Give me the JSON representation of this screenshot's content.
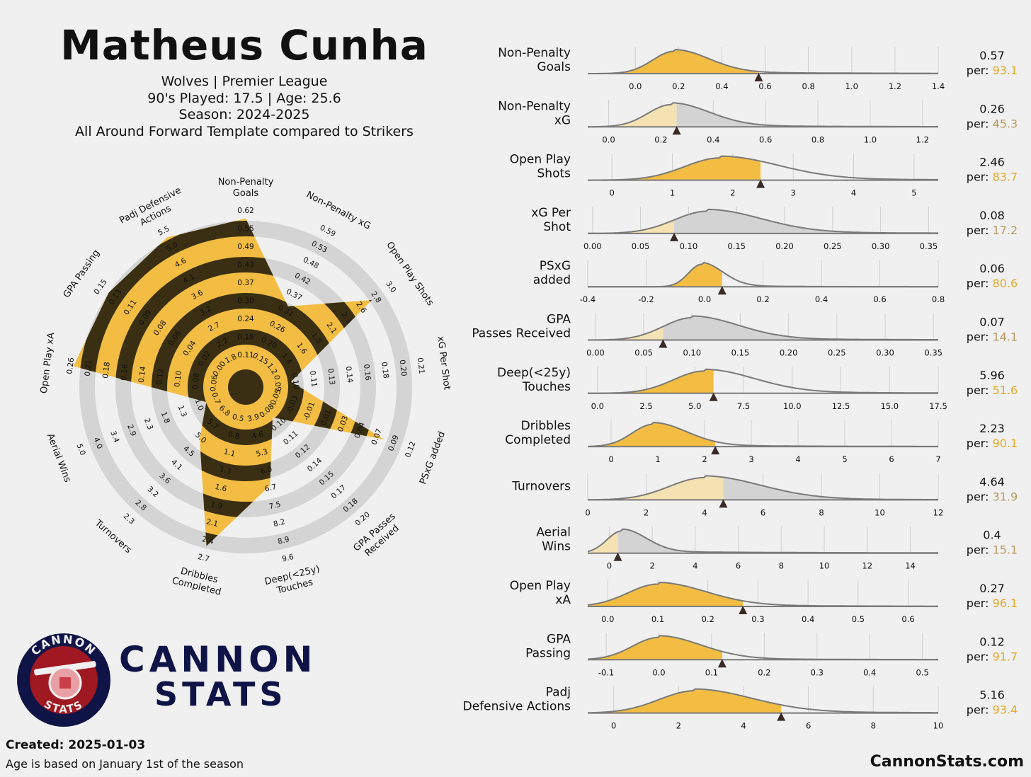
{
  "header": {
    "title": "Matheus Cunha",
    "team_league": "Wolves | Premier League",
    "played_age": "90's Played: 17.5 | Age: 25.6",
    "season": "Season: 2024-2025",
    "template": "All Around Forward Template compared to Strikers"
  },
  "logo": {
    "circle_top": "CANNON",
    "circle_bottom": "STATS",
    "brand_line1": "CANNON",
    "brand_line2": "STATS"
  },
  "footer": {
    "created": "Created: 2025-01-03",
    "note": "Age is based on January 1st of the season",
    "site": "CannonStats.com"
  },
  "colors": {
    "background": "#f0f0f0",
    "accent": "#f2bd42",
    "accent_light": "#f4e2b3",
    "dark_band": "#3a2f12",
    "ring": "#d4d4d4",
    "density_gray": "#d3d3d3",
    "density_line": "#7a7a7a",
    "logo_navy": "#0f1447",
    "logo_red": "#a01822"
  },
  "chart_data": [
    {
      "type": "radar",
      "title": "",
      "variables": [
        {
          "label": [
            "Non-Penalty",
            "Goals"
          ],
          "value": 0.57,
          "percentile": 93.1,
          "ticks": [
            "0.11",
            "0.18",
            "0.24",
            "0.30",
            "0.37",
            "0.43",
            "0.49",
            "0.55",
            "0.62"
          ]
        },
        {
          "label": [
            "Non-Penalty xG"
          ],
          "value": 0.26,
          "percentile": 45.3,
          "ticks": [
            "0.15",
            "0.20",
            "0.26",
            "0.31",
            "0.37",
            "0.42",
            "0.48",
            "0.53",
            "0.59"
          ]
        },
        {
          "label": [
            "Open Play Shots"
          ],
          "value": 2.46,
          "percentile": 83.7,
          "ticks": [
            "1.2",
            "1.4",
            "1.6",
            "1.8",
            "2.1",
            "2.3",
            "2.6",
            "2.8",
            "3.0"
          ]
        },
        {
          "label": [
            "xG Per Shot"
          ],
          "value": 0.08,
          "percentile": 17.2,
          "ticks": [
            "0.09",
            "0.10",
            "0.11",
            "0.13",
            "0.14",
            "0.16",
            "0.18",
            "0.20",
            "0.21"
          ]
        },
        {
          "label": [
            "PSxG added"
          ],
          "value": 0.06,
          "percentile": 80.6,
          "ticks": [
            "-0.05",
            "-0.03",
            "-0.01",
            "0.01",
            "0.03",
            "0.04",
            "0.07",
            "0.09",
            "0.12"
          ]
        },
        {
          "label": [
            "GPA Passes",
            "Received"
          ],
          "value": 0.07,
          "percentile": 14.1,
          "ticks": [
            "0.08",
            "0.10",
            "0.11",
            "0.12",
            "0.14",
            "0.15",
            "0.17",
            "0.18",
            "0.20"
          ]
        },
        {
          "label": [
            "Deep(<25y)",
            "Touches"
          ],
          "value": 5.96,
          "percentile": 51.6,
          "ticks": [
            "3.9",
            "4.6",
            "5.3",
            "6.0",
            "6.7",
            "7.5",
            "8.2",
            "8.9",
            "9.6"
          ]
        },
        {
          "label": [
            "Dribbles",
            "Completed"
          ],
          "value": 2.23,
          "percentile": 90.1,
          "ticks": [
            "0.5",
            "0.8",
            "1.1",
            "1.3",
            "1.6",
            "1.9",
            "2.1",
            "2.4",
            "2.7"
          ]
        },
        {
          "label": [
            "Turnovers"
          ],
          "value": 4.64,
          "percentile": 31.9,
          "ticks": [
            "6.8",
            "5.7",
            "5.0",
            "4.5",
            "4.1",
            "3.6",
            "3.2",
            "2.8",
            "2.3"
          ]
        },
        {
          "label": [
            "Aerial Wins"
          ],
          "value": 0.4,
          "percentile": 15.1,
          "ticks": [
            "0.7",
            "1.0",
            "1.3",
            "1.8",
            "2.3",
            "2.9",
            "3.4",
            "4.0",
            "5.0"
          ]
        },
        {
          "label": [
            "Open Play xA"
          ],
          "value": 0.27,
          "percentile": 96.1,
          "ticks": [
            "0.06",
            "0.08",
            "0.10",
            "0.12",
            "0.14",
            "0.16",
            "0.18",
            "0.21",
            "0.26"
          ]
        },
        {
          "label": [
            "GPA Passing"
          ],
          "value": 0.12,
          "percentile": 91.7,
          "ticks": [
            "0.00",
            "0.02",
            "0.04",
            "0.06",
            "0.08",
            "0.09",
            "0.11",
            "0.13",
            "0.15"
          ]
        },
        {
          "label": [
            "Padj Defensive",
            "Actions"
          ],
          "value": 5.16,
          "percentile": 93.4,
          "ticks": [
            "1.8",
            "2.2",
            "2.7",
            "3.2",
            "3.6",
            "4.1",
            "4.6",
            "5.0",
            "5.5"
          ]
        }
      ]
    },
    {
      "type": "density",
      "percentile_prefix": "per:",
      "metrics": [
        {
          "label": [
            "Non-Penalty",
            "Goals"
          ],
          "value": "0.57",
          "percentile": "93.1",
          "x_ticks": [
            "0.0",
            "0.2",
            "0.4",
            "0.6",
            "0.8",
            "1.0",
            "1.2",
            "1.4"
          ],
          "x_range": [
            -0.22,
            1.4
          ],
          "value_num": 0.57,
          "peak": 0.18,
          "spread": 0.1,
          "tail": 0.2
        },
        {
          "label": [
            "Non-Penalty",
            "xG"
          ],
          "value": "0.26",
          "percentile": "45.3",
          "x_ticks": [
            "0.0",
            "0.2",
            "0.4",
            "0.6",
            "0.8",
            "1.0",
            "1.2"
          ],
          "x_range": [
            -0.08,
            1.26
          ],
          "value_num": 0.26,
          "peak": 0.24,
          "spread": 0.09,
          "tail": 0.16
        },
        {
          "label": [
            "Open Play",
            "Shots"
          ],
          "value": "2.46",
          "percentile": "83.7",
          "x_ticks": [
            "0",
            "1",
            "2",
            "3",
            "4",
            "5"
          ],
          "x_range": [
            -0.4,
            5.4
          ],
          "value_num": 2.46,
          "peak": 1.8,
          "spread": 0.6,
          "tail": 0.9
        },
        {
          "label": [
            "xG Per",
            "Shot"
          ],
          "value": "0.08",
          "percentile": "17.2",
          "x_ticks": [
            "0.00",
            "0.05",
            "0.10",
            "0.15",
            "0.20",
            "0.25",
            "0.30",
            "0.35"
          ],
          "x_range": [
            -0.005,
            0.36
          ],
          "value_num": 0.085,
          "peak": 0.12,
          "spread": 0.035,
          "tail": 0.05
        },
        {
          "label": [
            "PSxG",
            "added"
          ],
          "value": "0.06",
          "percentile": "80.6",
          "x_ticks": [
            "-0.4",
            "-0.2",
            "0.0",
            "0.2",
            "0.4",
            "0.6",
            "0.8"
          ],
          "x_range": [
            -0.4,
            0.8
          ],
          "value_num": 0.06,
          "peak": -0.01,
          "spread": 0.045,
          "tail": 0.06
        },
        {
          "label": [
            "GPA",
            "Passes Received"
          ],
          "value": "0.07",
          "percentile": "14.1",
          "x_ticks": [
            "0.00",
            "0.05",
            "0.10",
            "0.15",
            "0.20",
            "0.25",
            "0.30",
            "0.35"
          ],
          "x_range": [
            -0.008,
            0.355
          ],
          "value_num": 0.07,
          "peak": 0.1,
          "spread": 0.03,
          "tail": 0.05
        },
        {
          "label": [
            "Deep(<25y)",
            "Touches"
          ],
          "value": "5.96",
          "percentile": "51.6",
          "x_ticks": [
            "0.0",
            "2.5",
            "5.0",
            "7.5",
            "10.0",
            "12.5",
            "15.0",
            "17.5"
          ],
          "x_range": [
            -0.5,
            17.5
          ],
          "value_num": 5.96,
          "peak": 5.5,
          "spread": 1.6,
          "tail": 2.5
        },
        {
          "label": [
            "Dribbles",
            "Completed"
          ],
          "value": "2.23",
          "percentile": "90.1",
          "x_ticks": [
            "0",
            "1",
            "2",
            "3",
            "4",
            "5",
            "6",
            "7"
          ],
          "x_range": [
            -0.5,
            7
          ],
          "value_num": 2.23,
          "peak": 0.9,
          "spread": 0.45,
          "tail": 0.8
        },
        {
          "label": [
            "Turnovers"
          ],
          "value": "4.64",
          "percentile": "31.9",
          "x_ticks": [
            "0",
            "2",
            "4",
            "6",
            "8",
            "10",
            "12"
          ],
          "x_range": [
            0,
            12
          ],
          "value_num": 4.64,
          "peak": 4.0,
          "spread": 1.2,
          "tail": 1.4
        },
        {
          "label": [
            "Aerial",
            "Wins"
          ],
          "value": "0.4",
          "percentile": "15.1",
          "x_ticks": [
            "0",
            "2",
            "4",
            "6",
            "8",
            "10",
            "12",
            "14"
          ],
          "x_range": [
            -1,
            15.3
          ],
          "value_num": 0.4,
          "peak": 0.6,
          "spread": 0.7,
          "tail": 2.5
        },
        {
          "label": [
            "Open Play",
            "xA"
          ],
          "value": "0.27",
          "percentile": "96.1",
          "x_ticks": [
            "0.0",
            "0.1",
            "0.2",
            "0.3",
            "0.4",
            "0.5",
            "0.6"
          ],
          "x_range": [
            -0.04,
            0.66
          ],
          "value_num": 0.27,
          "peak": 0.1,
          "spread": 0.06,
          "tail": 0.09
        },
        {
          "label": [
            "GPA",
            "Passing"
          ],
          "value": "0.12",
          "percentile": "91.7",
          "x_ticks": [
            "-0.1",
            "0.0",
            "0.1",
            "0.2",
            "0.3",
            "0.4",
            "0.5"
          ],
          "x_range": [
            -0.135,
            0.53
          ],
          "value_num": 0.12,
          "peak": 0.0,
          "spread": 0.05,
          "tail": 0.07
        },
        {
          "label": [
            "Padj",
            "Defensive Actions"
          ],
          "value": "5.16",
          "percentile": "93.4",
          "x_ticks": [
            "0",
            "2",
            "4",
            "6",
            "8",
            "10"
          ],
          "x_range": [
            -0.8,
            10
          ],
          "value_num": 5.16,
          "peak": 2.5,
          "spread": 1.1,
          "tail": 1.6
        }
      ]
    }
  ]
}
